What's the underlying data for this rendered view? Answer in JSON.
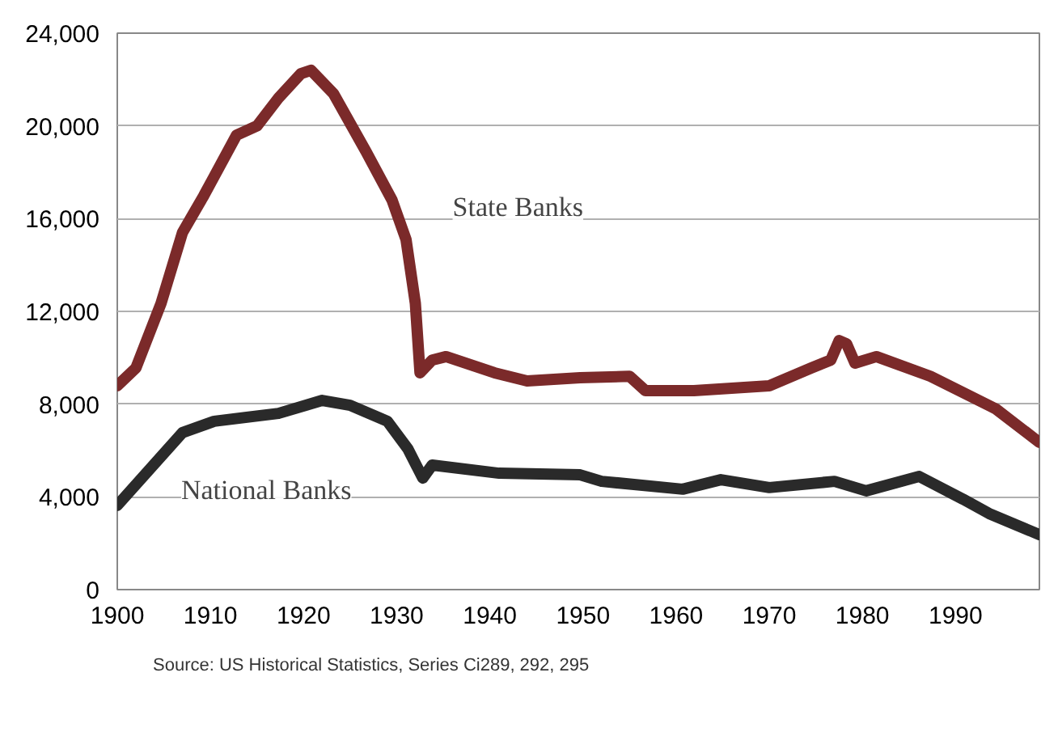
{
  "chart_data": {
    "type": "line",
    "series": [
      {
        "name": "State Banks",
        "color": "#7b2a2a",
        "x": [
          1900,
          1902,
          1904.7,
          1907,
          1909.3,
          1912.8,
          1915,
          1917.3,
          1919.7,
          1920.8,
          1923.2,
          1926.7,
          1929.5,
          1931,
          1932,
          1932.5,
          1933.8,
          1935.3,
          1940.5,
          1944,
          1949.7,
          1955,
          1956.7,
          1961.9,
          1970,
          1974.5,
          1976.6,
          1977.5,
          1978.3,
          1979.2,
          1981.5,
          1987.3,
          1994.3,
          1999
        ],
        "values": [
          8790,
          9560,
          12350,
          15400,
          17000,
          19600,
          20000,
          21200,
          22250,
          22400,
          21400,
          18900,
          16800,
          15100,
          12350,
          9350,
          9900,
          10050,
          9350,
          9000,
          9140,
          9200,
          8580,
          8580,
          8790,
          9560,
          9900,
          10740,
          10600,
          9770,
          10050,
          9200,
          7800,
          6350
        ]
      },
      {
        "name": "National Banks",
        "color": "#2a2a2a",
        "x": [
          1900,
          1907,
          1910.4,
          1917.3,
          1922,
          1925,
          1929,
          1931.2,
          1932.8,
          1933.8,
          1941,
          1949.7,
          1952,
          1960.7,
          1964.8,
          1970,
          1977,
          1980.4,
          1986.1,
          1990.8,
          1993.6,
          1999
        ],
        "values": [
          3630,
          6770,
          7260,
          7600,
          8160,
          7950,
          7260,
          6070,
          4810,
          5370,
          5020,
          4950,
          4670,
          4330,
          4740,
          4400,
          4670,
          4260,
          4880,
          3900,
          3280,
          2370
        ]
      }
    ],
    "xlim": [
      1900,
      1999
    ],
    "xticks": [
      1900,
      1910,
      1920,
      1930,
      1940,
      1950,
      1960,
      1970,
      1980,
      1990
    ],
    "ylim": [
      0,
      24000
    ],
    "yticks": [
      {
        "value": 0,
        "label": "0"
      },
      {
        "value": 4000,
        "label": "4,000"
      },
      {
        "value": 8000,
        "label": "8,000"
      },
      {
        "value": 12000,
        "label": "12,000"
      },
      {
        "value": 16000,
        "label": "16,000"
      },
      {
        "value": 20000,
        "label": "20,000"
      },
      {
        "value": 24000,
        "label": "24,000"
      }
    ],
    "grid": true,
    "line_style": "solid",
    "annotations": [
      "Source: US Historical Statistics, Series Ci289, 292, 295"
    ]
  }
}
